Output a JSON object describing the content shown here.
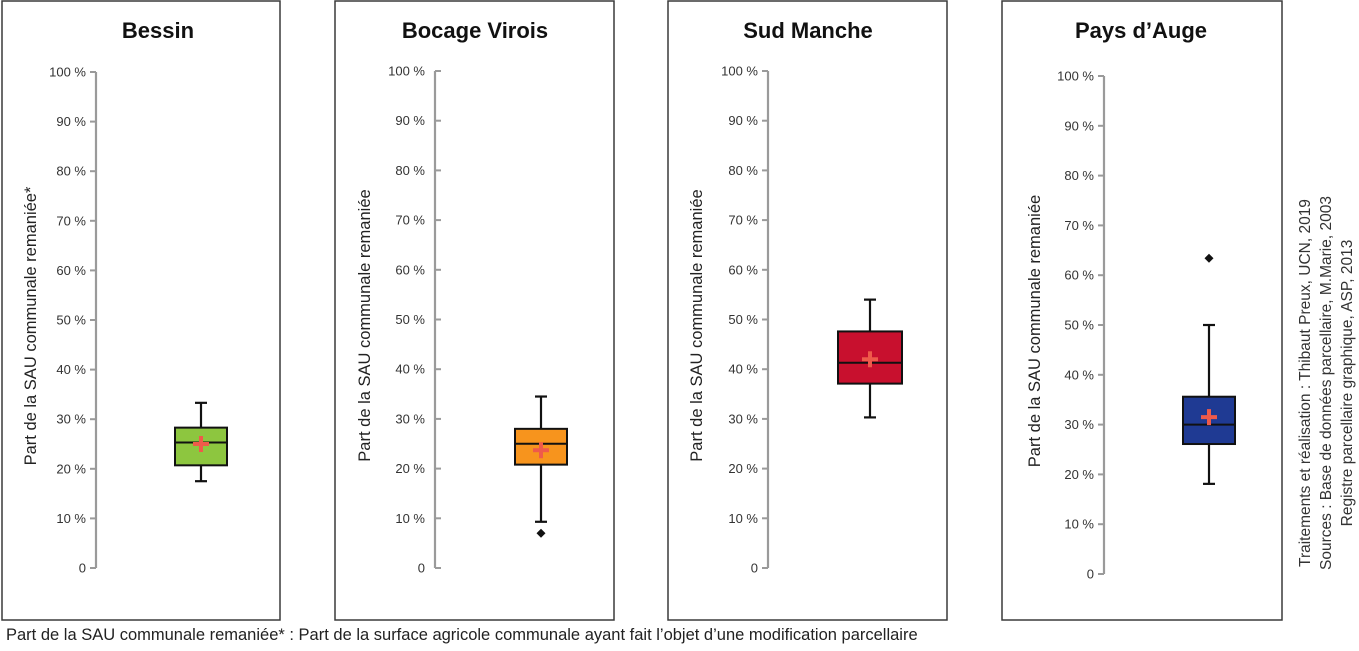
{
  "chart_data": [
    {
      "type": "boxplot",
      "title": "Bessin",
      "ylabel": "Part de la SAU communale remaniée*",
      "ylim": [
        0,
        100
      ],
      "yticks": [
        "0",
        "10 %",
        "20 %",
        "30 %",
        "40 %",
        "50 %",
        "60 %",
        "70 %",
        "80 %",
        "90 %",
        "100 %"
      ],
      "box_color": "#8dc63f",
      "whisker_low": 17.5,
      "q1": 20.7,
      "median": 25.3,
      "q3": 28.3,
      "whisker_high": 33.3,
      "mean": 25.0,
      "outliers": []
    },
    {
      "type": "boxplot",
      "title": "Bocage Virois",
      "ylabel": "Part de la SAU communale remaniée",
      "ylim": [
        0,
        100
      ],
      "yticks": [
        "0",
        "10 %",
        "20 %",
        "30 %",
        "40 %",
        "50 %",
        "60 %",
        "70 %",
        "80 %",
        "90 %",
        "100 %"
      ],
      "box_color": "#f7941d",
      "whisker_low": 9.3,
      "q1": 20.8,
      "median": 25.0,
      "q3": 28.0,
      "whisker_high": 34.5,
      "mean": 23.7,
      "outliers": [
        7.0
      ]
    },
    {
      "type": "boxplot",
      "title": "Sud Manche",
      "ylabel": "Part de la SAU communale remaniée",
      "ylim": [
        0,
        100
      ],
      "yticks": [
        "0",
        "10 %",
        "20 %",
        "30 %",
        "40 %",
        "50 %",
        "60 %",
        "70 %",
        "80 %",
        "90 %",
        "100 %"
      ],
      "box_color": "#c8102e",
      "whisker_low": 30.3,
      "q1": 37.1,
      "median": 41.3,
      "q3": 47.6,
      "whisker_high": 54.0,
      "mean": 42.0,
      "outliers": []
    },
    {
      "type": "boxplot",
      "title": "Pays d’Auge",
      "ylabel": "Part de la SAU communale remaniée",
      "ylim": [
        0,
        100
      ],
      "yticks": [
        "0",
        "10 %",
        "20 %",
        "30 %",
        "40 %",
        "50 %",
        "60 %",
        "70 %",
        "80 %",
        "90 %",
        "100 %"
      ],
      "box_color": "#1f3a93",
      "whisker_low": 18.1,
      "q1": 26.1,
      "median": 30.0,
      "q3": 35.6,
      "whisker_high": 50.0,
      "mean": 31.5,
      "outliers": [
        63.4
      ]
    }
  ],
  "source_lines": [
    "Traitements et réalisation : Thibaut Preux, UCN, 2019",
    "Sources : Base de données parcellaire, M.Marie, 2003",
    "Registre parcellaire graphique, ASP, 2013"
  ],
  "footnote": "Part de la SAU communale remaniée* : Part de la surface agricole communale ayant fait l’objet d’une modification parcellaire",
  "colors": {
    "mean_marker": "#ef5a4a",
    "axis": "#9a9a9a",
    "frame": "#3a3a3a"
  }
}
